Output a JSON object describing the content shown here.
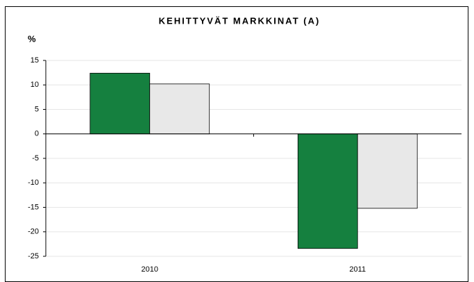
{
  "chart_data": {
    "type": "bar",
    "title": "KEHITTYVÄT MARKKINAT (A)",
    "y_label": "%",
    "categories": [
      "2010",
      "2011"
    ],
    "series": [
      {
        "color": "#15803f",
        "values": [
          12.4,
          -23.4
        ]
      },
      {
        "color": "#e8e8e8",
        "values": [
          10.2,
          -15.2
        ]
      }
    ],
    "ylim": [
      -25,
      15
    ],
    "yticks": [
      -25,
      -20,
      -15,
      -10,
      -5,
      0,
      5,
      10,
      15
    ],
    "grid": true
  }
}
